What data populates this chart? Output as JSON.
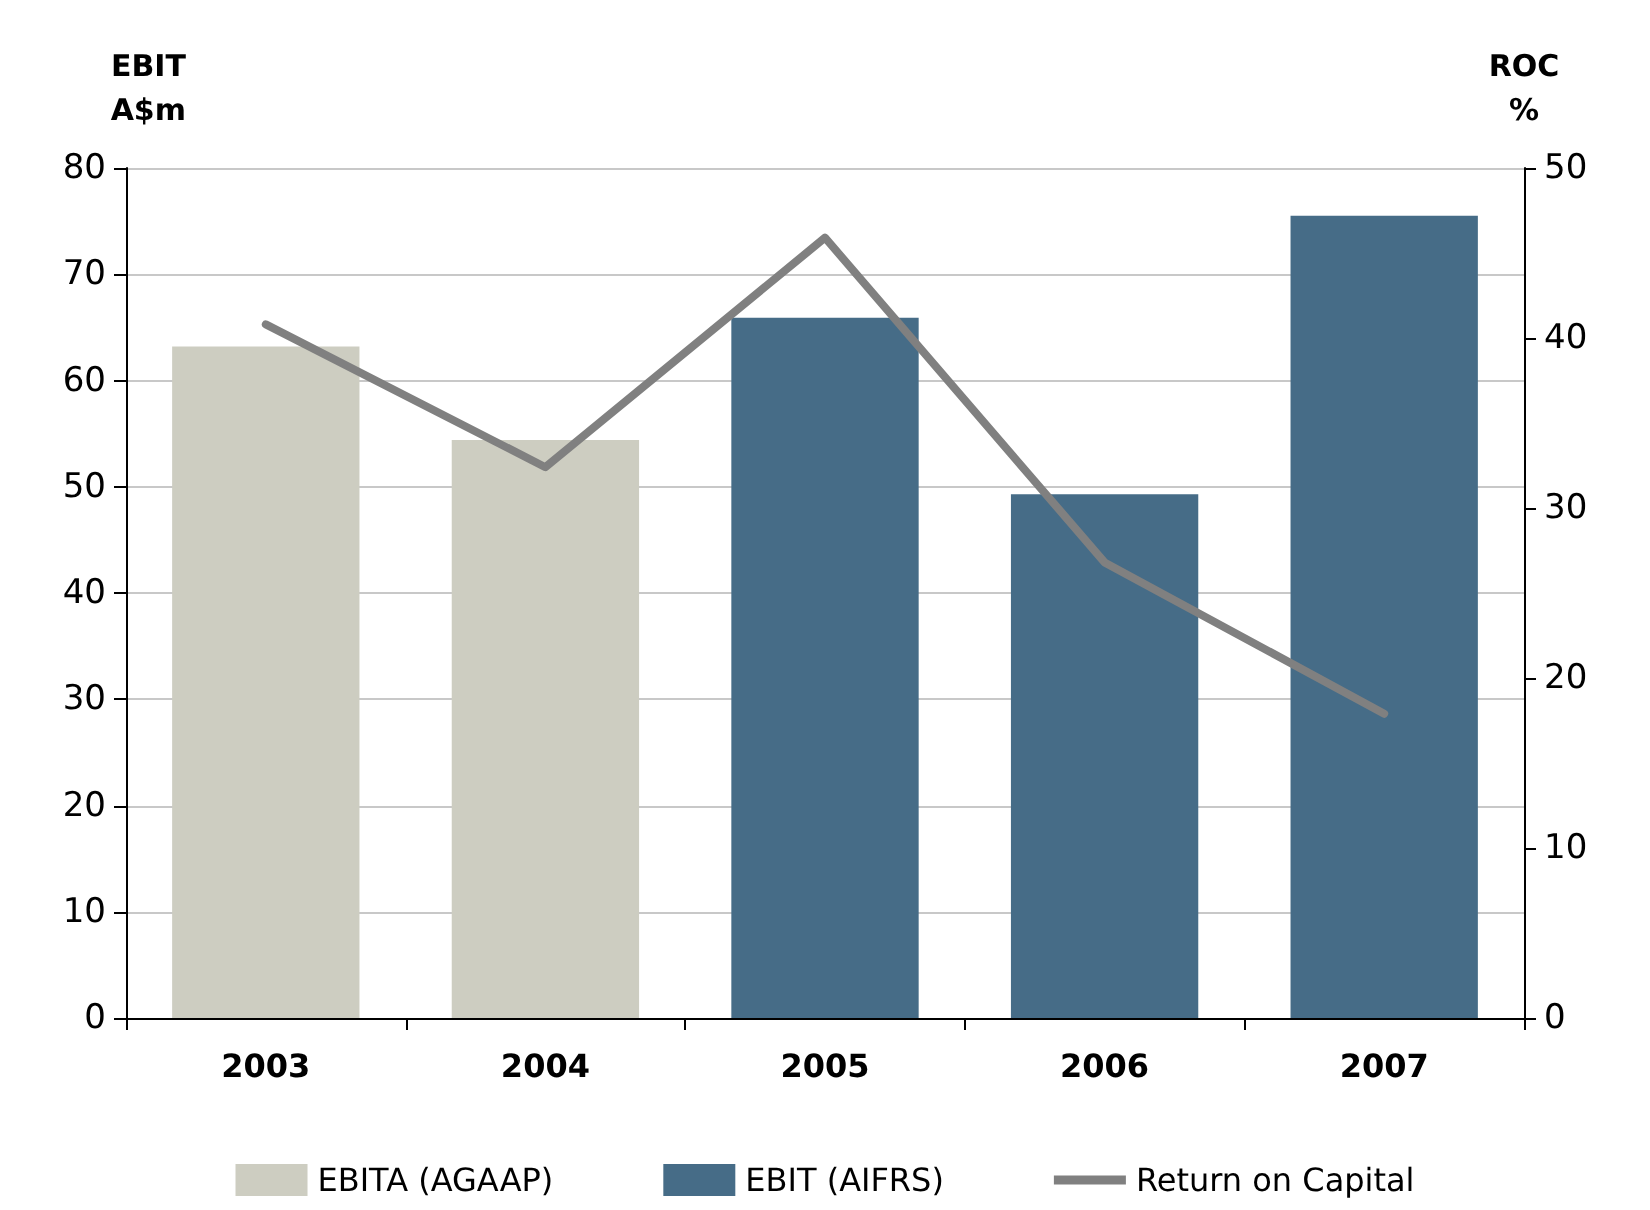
{
  "chart_data": {
    "type": "bar",
    "ylabel": "EBIT\nA$m",
    "y2label": "ROC\n%",
    "categories": [
      "2003",
      "2004",
      "2005",
      "2006",
      "2007"
    ],
    "series": [
      {
        "name": "EBITA (AGAAP)",
        "color": "#cdcdc1",
        "values": [
          63.2,
          54.4,
          null,
          null,
          null
        ]
      },
      {
        "name": "EBIT (AIFRS)",
        "color": "#466c87",
        "values": [
          null,
          null,
          65.9,
          49.3,
          75.5
        ]
      },
      {
        "name": "Return on Capital",
        "type": "line",
        "axis": "y2",
        "color": "#808080",
        "values": [
          40.8,
          32.4,
          45.9,
          26.8,
          17.9
        ]
      }
    ],
    "stacked": true,
    "ylim": [
      0,
      80
    ],
    "yticks": [
      0,
      10,
      20,
      30,
      40,
      50,
      60,
      70,
      80
    ],
    "y2lim": [
      0,
      50
    ],
    "y2ticks": [
      0,
      10,
      20,
      30,
      40,
      50
    ],
    "grid": "y",
    "legend": "bottom",
    "marker": "none",
    "line_style": "solid"
  }
}
